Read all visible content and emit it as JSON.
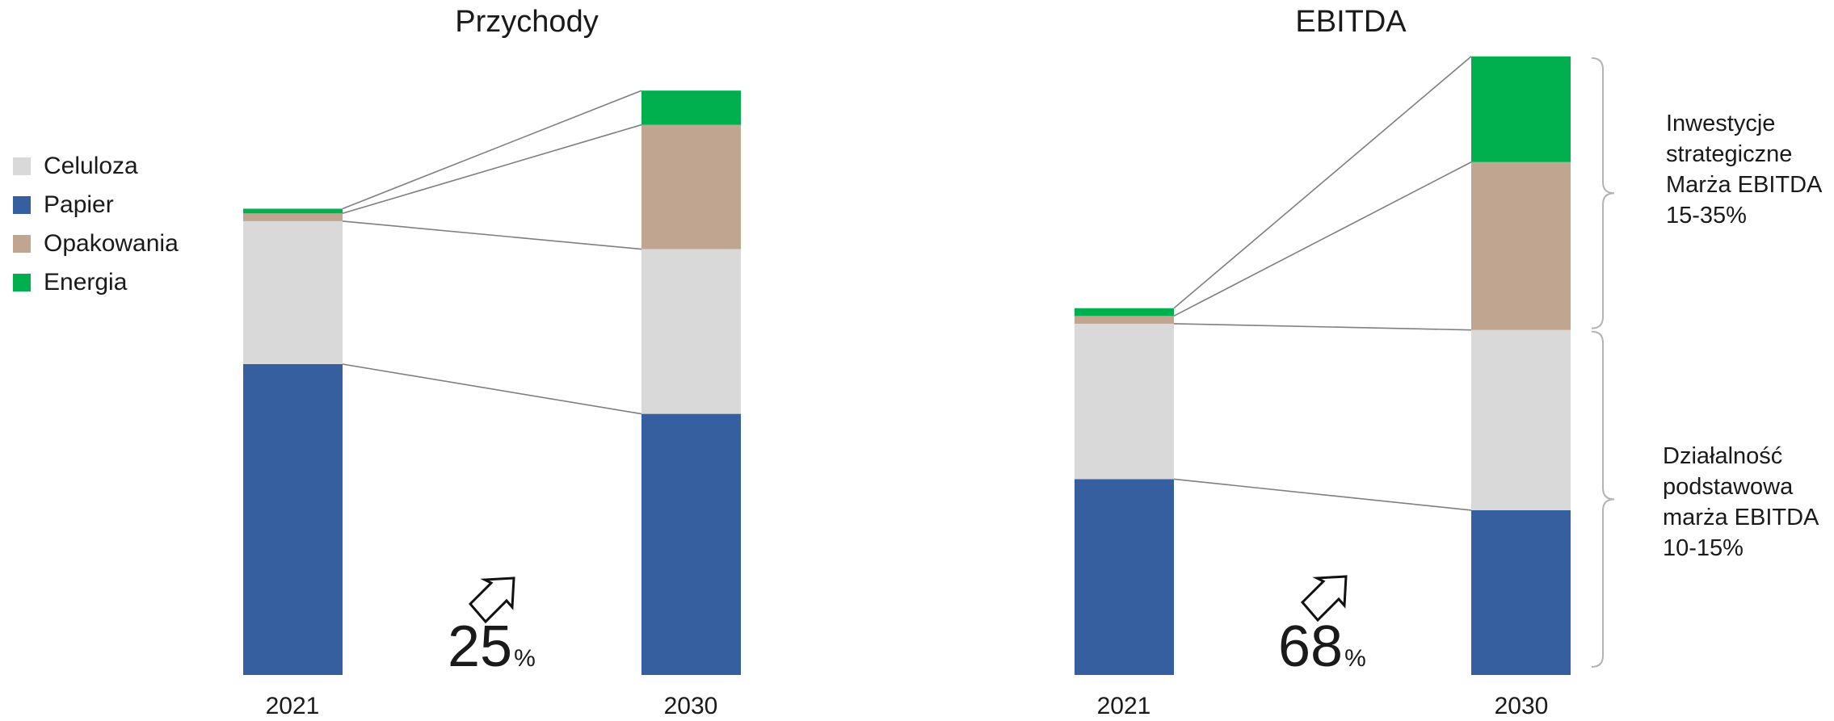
{
  "colors": {
    "Celuloza": "#d9d9d9",
    "Papier": "#365f9f",
    "Opakowania": "#c0a590",
    "Energia": "#00b04f",
    "connector": "#7f7f7f",
    "bracket": "#b3b3b3"
  },
  "legend": {
    "items": [
      {
        "label": "Celuloza",
        "color": "#d9d9d9"
      },
      {
        "label": "Papier",
        "color": "#365f9f"
      },
      {
        "label": "Opakowania",
        "color": "#c0a590"
      },
      {
        "label": "Energia",
        "color": "#00b04f"
      }
    ]
  },
  "revenue": {
    "growth": "25",
    "growth_unit": "%",
    "year_2021": "2021",
    "year_2030": "2030"
  },
  "ebitda": {
    "growth": "68",
    "growth_unit": "%",
    "year_2021": "2021",
    "year_2030": "2030",
    "bracket_top_label": [
      "Inwestycje",
      "strategiczne",
      "Marża EBITDA",
      "15-35%"
    ],
    "bracket_bottom_label": [
      "Działalność",
      "podstawowa",
      "marża EBITDA",
      "10-15%"
    ]
  },
  "chart_data": [
    {
      "type": "bar",
      "stacked": true,
      "title": "Przychody",
      "categories": [
        "2021",
        "2030"
      ],
      "series": [
        {
          "name": "Papier",
          "values": [
            100,
            84
          ]
        },
        {
          "name": "Celuloza",
          "values": [
            46,
            53
          ]
        },
        {
          "name": "Opakowania",
          "values": [
            2.5,
            40
          ]
        },
        {
          "name": "Energia",
          "values": [
            1.5,
            11
          ]
        }
      ],
      "xlabel": "",
      "ylabel": "",
      "ylim": [
        0,
        200
      ],
      "grid": false,
      "legend": "left"
    },
    {
      "type": "bar",
      "stacked": true,
      "title": "EBITDA",
      "categories": [
        "2021",
        "2030"
      ],
      "series": [
        {
          "name": "Papier",
          "values": [
            63,
            53
          ]
        },
        {
          "name": "Celuloza",
          "values": [
            50,
            58
          ]
        },
        {
          "name": "Opakowania",
          "values": [
            2.5,
            54
          ]
        },
        {
          "name": "Energia",
          "values": [
            2.5,
            34
          ]
        }
      ],
      "xlabel": "",
      "ylabel": "",
      "ylim": [
        0,
        200
      ],
      "grid": false,
      "legend": "none"
    }
  ]
}
